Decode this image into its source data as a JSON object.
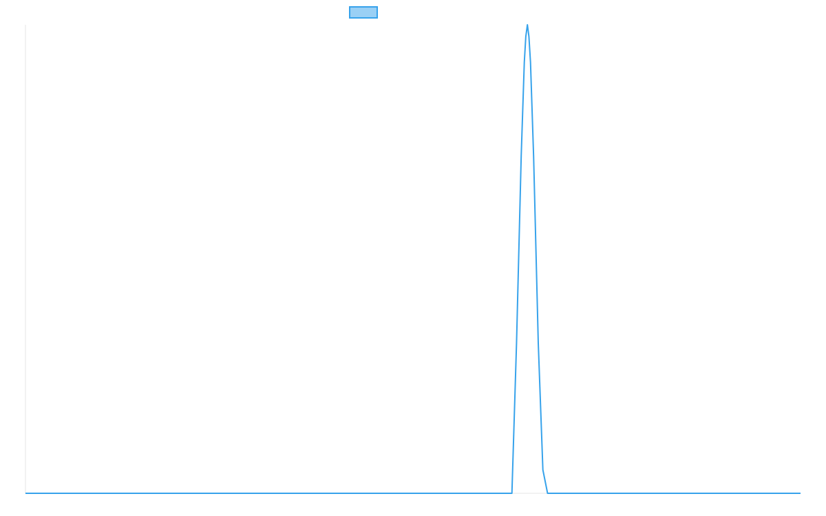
{
  "chart_data": {
    "type": "line",
    "title": "",
    "xlabel": "",
    "ylabel": "",
    "x_range": [
      0,
      1
    ],
    "y_range": [
      0,
      1
    ],
    "grid": false,
    "legend": {
      "placement": "top-center",
      "entries": [
        {
          "name": "",
          "color": "#36a2eb",
          "fill": "#9ad0f5"
        }
      ]
    },
    "series": [
      {
        "name": "",
        "color": "#36a2eb",
        "x": [
          0,
          0.6276,
          0.6336,
          0.6396,
          0.6436,
          0.6456,
          0.6476,
          0.6496,
          0.6516,
          0.6556,
          0.6616,
          0.6676,
          0.6736,
          1
        ],
        "y": [
          0,
          0,
          0.32,
          0.72,
          0.92,
          0.975,
          1,
          0.975,
          0.92,
          0.72,
          0.32,
          0.05,
          0,
          0
        ]
      }
    ]
  }
}
